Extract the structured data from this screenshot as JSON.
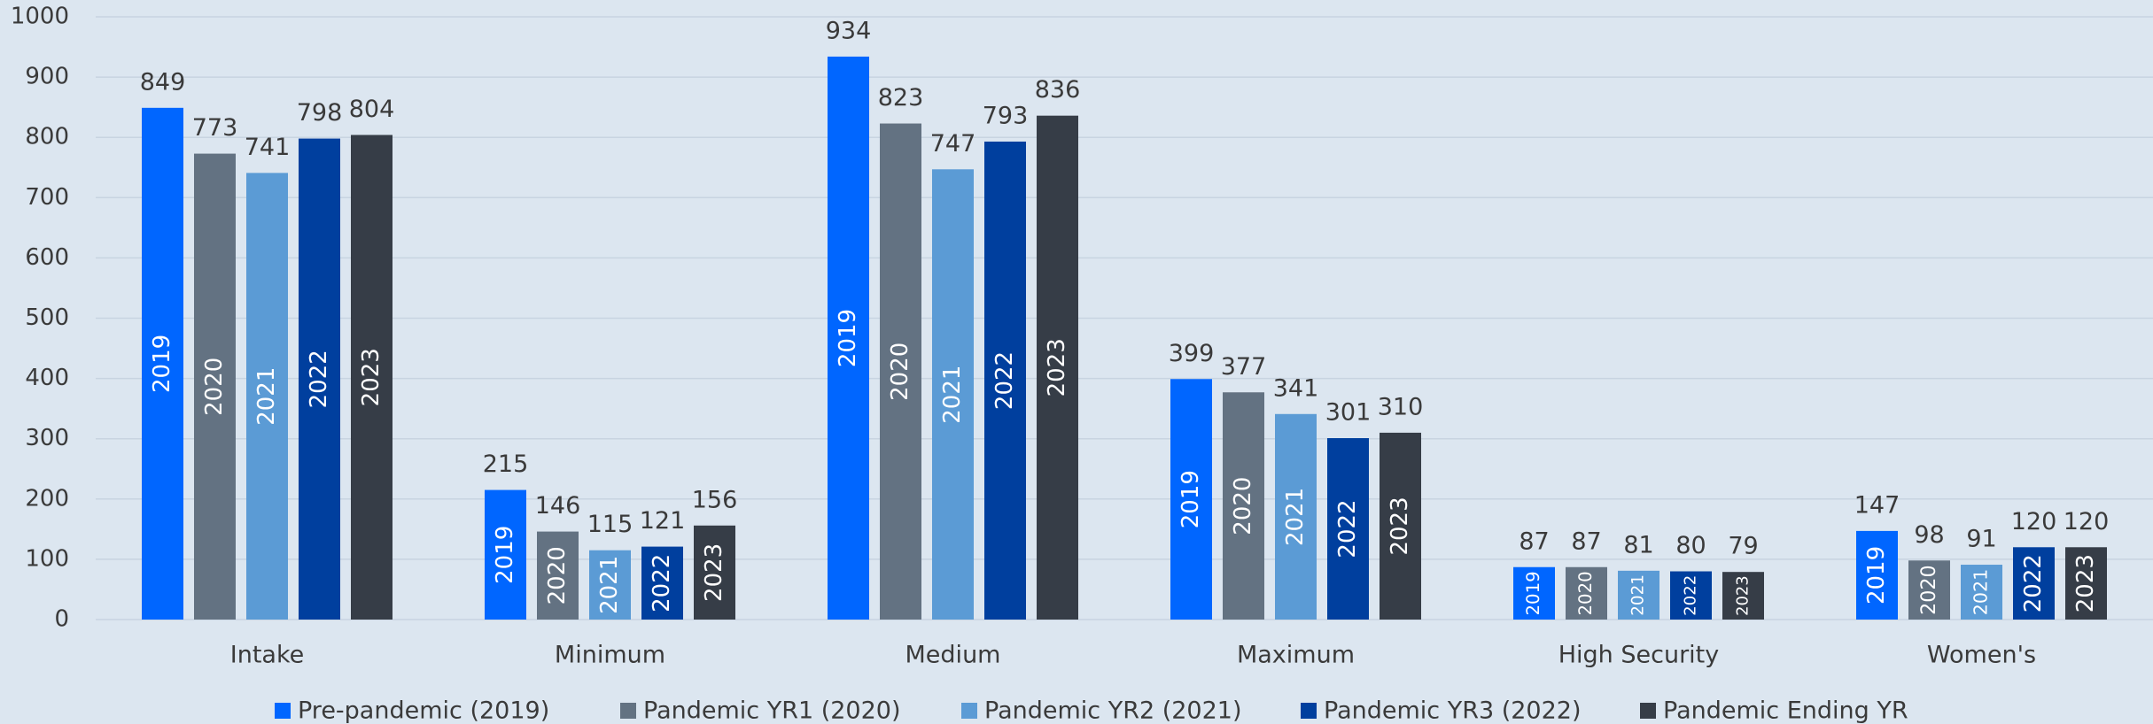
{
  "chart_data": {
    "type": "bar",
    "categories": [
      "Intake",
      "Minimum",
      "Medium",
      "Maximum",
      "High Security",
      "Women's"
    ],
    "series": [
      {
        "name": "Pre-pandemic (2019)",
        "label": "2019",
        "color": "#0066ff",
        "values": [
          849,
          215,
          934,
          399,
          87,
          147
        ]
      },
      {
        "name": "Pandemic YR1 (2020)",
        "label": "2020",
        "color": "#637282",
        "values": [
          773,
          146,
          823,
          377,
          87,
          98
        ]
      },
      {
        "name": "Pandemic YR2 (2021)",
        "label": "2021",
        "color": "#5b9bd5",
        "values": [
          741,
          115,
          747,
          341,
          81,
          91
        ]
      },
      {
        "name": "Pandemic YR3 (2022)",
        "label": "2022",
        "color": "#003f9e",
        "values": [
          798,
          121,
          793,
          301,
          80,
          120
        ]
      },
      {
        "name": "Pandemic Ending YR",
        "label": "2023",
        "color": "#363d47",
        "values": [
          804,
          156,
          836,
          310,
          79,
          120
        ]
      }
    ],
    "ylim": [
      0,
      1000
    ],
    "yticks": [
      0,
      100,
      200,
      300,
      400,
      500,
      600,
      700,
      800,
      900,
      1000
    ],
    "grid": true,
    "legend": "bottom"
  }
}
